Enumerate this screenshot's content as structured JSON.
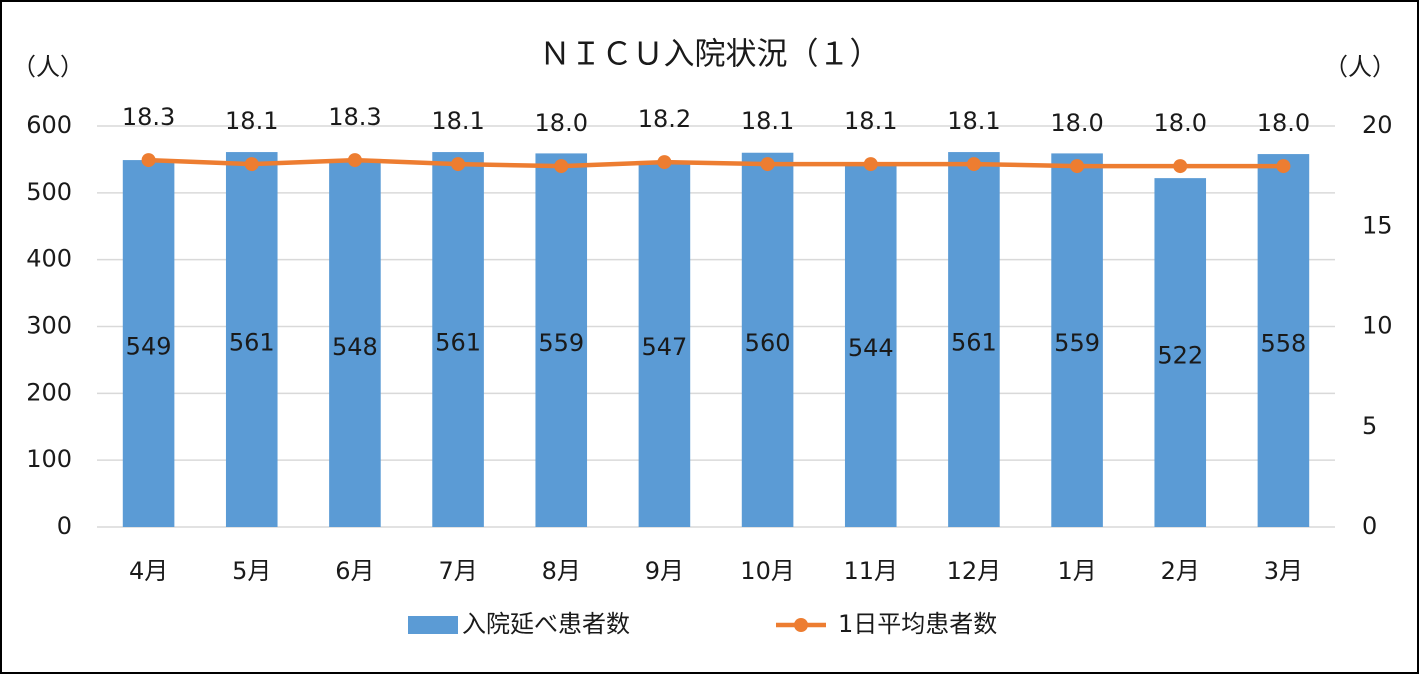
{
  "chart_data": {
    "type": "bar",
    "title": "ＮＩＣＵ入院状況（１）",
    "y_label": "（人）",
    "y2_label": "（人）",
    "categories": [
      "4月",
      "5月",
      "6月",
      "7月",
      "8月",
      "9月",
      "10月",
      "11月",
      "12月",
      "1月",
      "2月",
      "3月"
    ],
    "series": [
      {
        "name": "入院延べ患者数",
        "type": "bar",
        "color": "#5b9bd5",
        "values": [
          549,
          561,
          548,
          561,
          559,
          547,
          560,
          544,
          561,
          559,
          522,
          558
        ]
      },
      {
        "name": "1日平均患者数",
        "type": "line",
        "axis": "y2",
        "color": "#ed7d31",
        "values": [
          18.3,
          18.1,
          18.3,
          18.1,
          18.0,
          18.2,
          18.1,
          18.1,
          18.1,
          18.0,
          18.0,
          18.0
        ],
        "value_labels": [
          "18.3",
          "18.1",
          "18.3",
          "18.1",
          "18.0",
          "18.2",
          "18.1",
          "18.1",
          "18.1",
          "18.0",
          "18.0",
          "18.0"
        ]
      }
    ],
    "ylim": [
      0,
      600
    ],
    "yticks": [
      0,
      100,
      200,
      300,
      400,
      500,
      600
    ],
    "y2lim": [
      0,
      20
    ],
    "y2ticks": [
      0,
      5,
      10,
      15,
      20
    ],
    "grid": true,
    "legend": "bottom"
  }
}
